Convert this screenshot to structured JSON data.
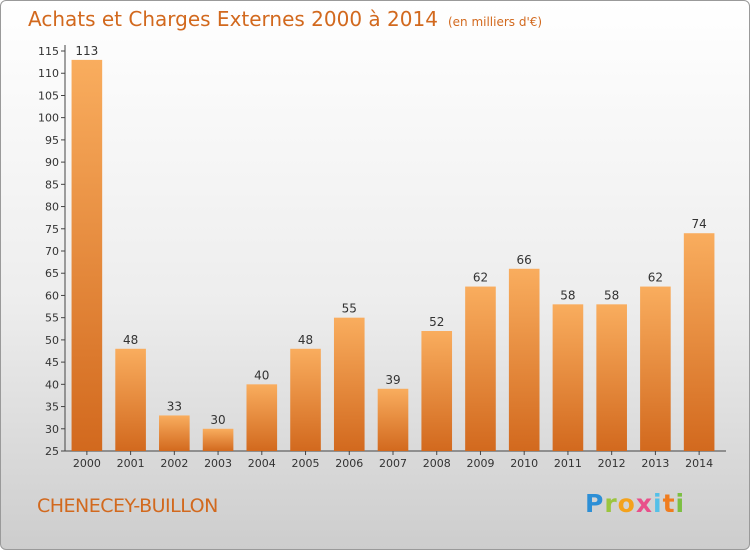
{
  "title": "Achats et Charges Externes 2000 à 2014",
  "subtitle": "(en milliers d'€)",
  "town": "CHENECEY-BUILLON",
  "logo": "Proxiti",
  "chart_data": {
    "type": "bar",
    "title": "Achats et Charges Externes 2000 à 2014",
    "subtitle": "(en milliers d'€)",
    "categories": [
      "2000",
      "2001",
      "2002",
      "2003",
      "2004",
      "2005",
      "2006",
      "2007",
      "2008",
      "2009",
      "2010",
      "2011",
      "2012",
      "2013",
      "2014"
    ],
    "values": [
      113,
      48,
      33,
      30,
      40,
      48,
      55,
      39,
      52,
      62,
      66,
      58,
      58,
      62,
      74
    ],
    "ylim": [
      25,
      115
    ],
    "yticks": [
      25,
      30,
      35,
      40,
      45,
      50,
      55,
      60,
      65,
      70,
      75,
      80,
      85,
      90,
      95,
      100,
      105,
      110,
      115
    ],
    "grid": false,
    "colors": {
      "bar_light": "#f7a556",
      "bar_dark": "#d2691e",
      "text": "#d2691e"
    }
  }
}
